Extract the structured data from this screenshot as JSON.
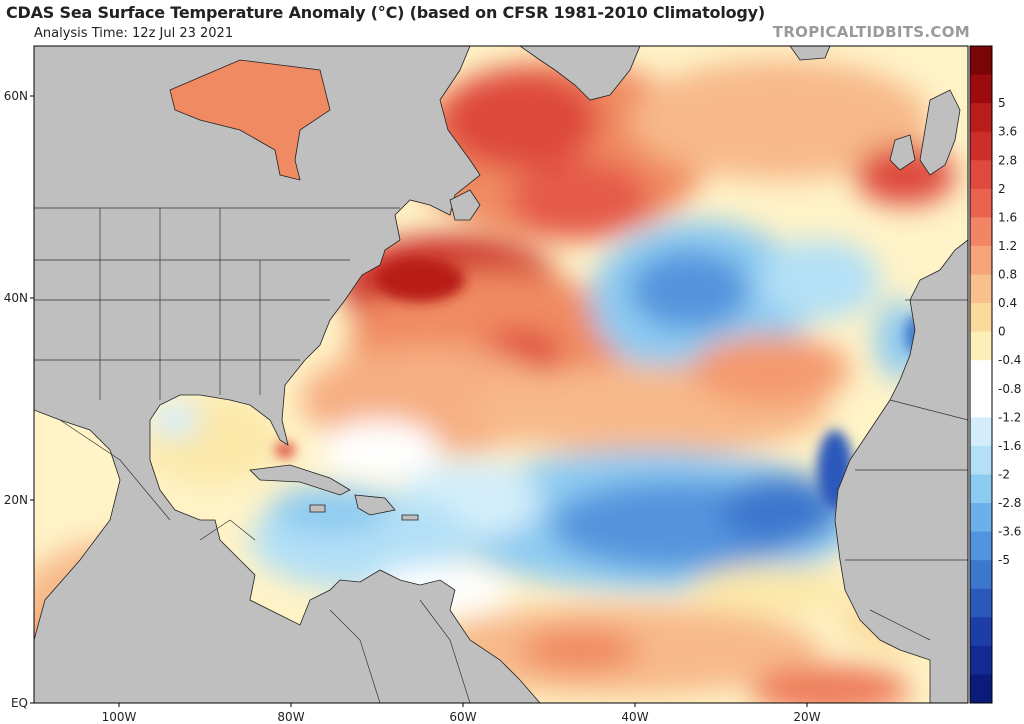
{
  "header": {
    "title": "CDAS Sea Surface Temperature Anomaly (°C) (based on CFSR 1981-2010 Climatology)",
    "analysis_time": "Analysis Time: 12z Jul 23 2021",
    "brand": "TROPICALTIDBITS.COM"
  },
  "map": {
    "region": "North Atlantic Ocean",
    "lat_labels": [
      "60N",
      "40N",
      "20N",
      "EQ"
    ],
    "lon_labels": [
      "100W",
      "80W",
      "60W",
      "40W",
      "20W"
    ],
    "land_color": "#bfbfbf",
    "border_color": "#333333"
  },
  "colorbar": {
    "labels": [
      "5",
      "3.6",
      "2.8",
      "2",
      "1.6",
      "1.2",
      "0.8",
      "0.4",
      "0",
      "-0.4",
      "-0.8",
      "-1.2",
      "-1.6",
      "-2",
      "-2.8",
      "-3.6",
      "-5"
    ],
    "colors": [
      "#7a0406",
      "#9c0b0e",
      "#b81d19",
      "#cc2f2a",
      "#de4a3e",
      "#e9634f",
      "#f18565",
      "#f5a47b",
      "#f8c08e",
      "#fadb9d",
      "#fcf0b8",
      "#ffffff",
      "#ffffff",
      "#d3eefa",
      "#b3e0f6",
      "#8ecbf1",
      "#6db0e9",
      "#5294dd",
      "#3d77cd",
      "#2b58bb",
      "#1d3da7",
      "#132a92",
      "#0a1b7a"
    ]
  }
}
